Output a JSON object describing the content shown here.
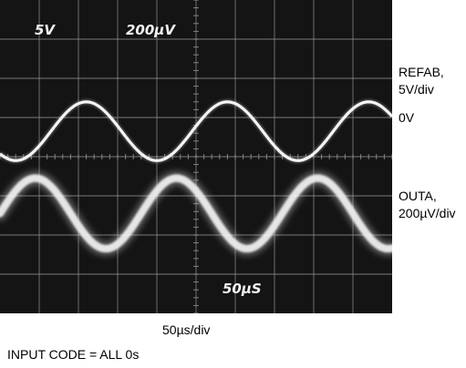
{
  "chart_data": {
    "type": "line",
    "title": "",
    "xlabel": "50µs/div",
    "ylabel": "",
    "x_unit": "µs",
    "x_divisions": 10,
    "y_divisions": 8,
    "x_range": [
      0,
      500
    ],
    "grid": true,
    "screen_labels": {
      "ch1_scale": "5V",
      "ch2_scale": "200µV",
      "timebase": "50µS"
    },
    "series": [
      {
        "name": "REFAB, 5V/div",
        "label_lines": [
          "REFAB,",
          "5V/div"
        ],
        "baseline_label": "0V",
        "scale": "5V/div",
        "waveform": "sine",
        "period_us": 180,
        "first_peak_us": 110,
        "baseline_div": 0.65,
        "amplitude_div": 0.75,
        "noise_band_div": 0
      },
      {
        "name": "OUTA, 200µV/div",
        "label_lines": [
          "OUTA,",
          "200µV/div"
        ],
        "scale": "200µV/div",
        "waveform": "sine",
        "period_us": 180,
        "first_peak_us": 45,
        "baseline_div": -1.45,
        "amplitude_div": 0.9,
        "noise_band_div": 0.35
      }
    ],
    "footnote": "INPUT CODE = ALL 0s"
  },
  "colors": {
    "screen_bg": "#141414",
    "grid": "#9a9a9a",
    "trace": "#f4f4f4"
  }
}
